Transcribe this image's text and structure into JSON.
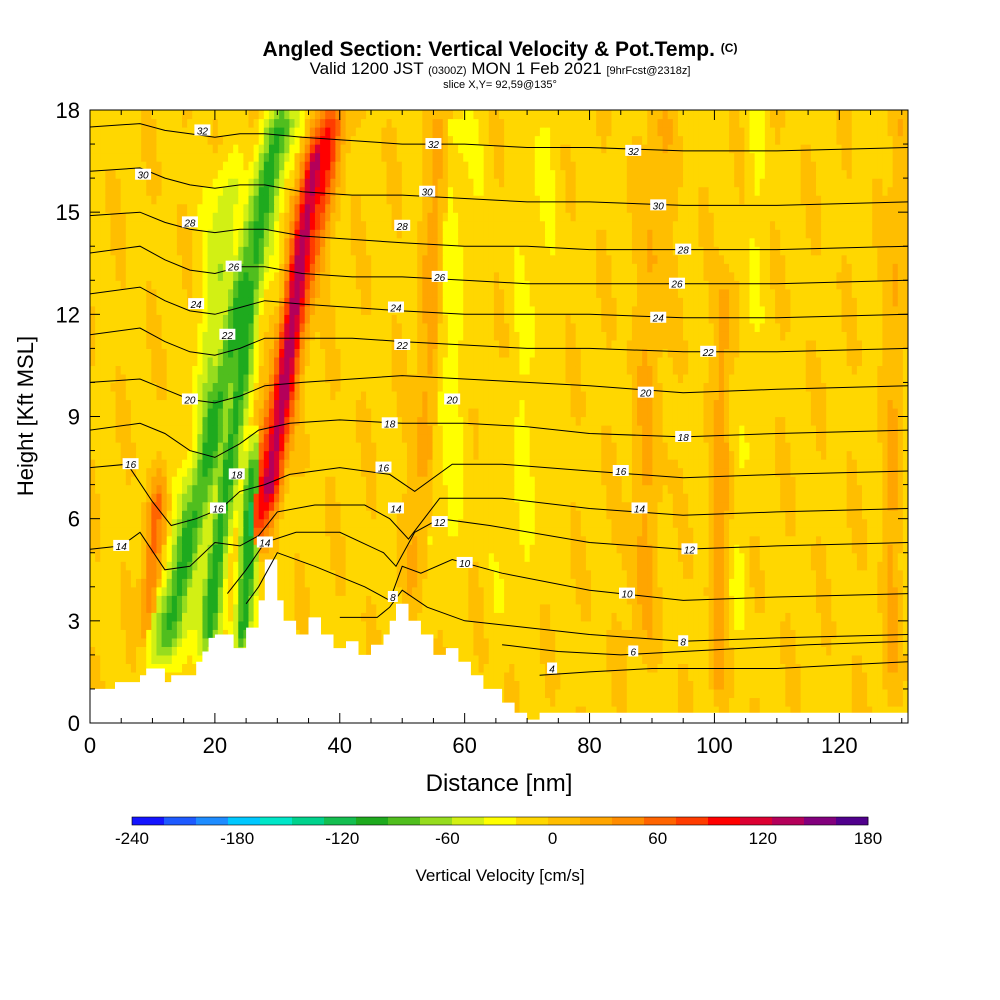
{
  "header": {
    "title": "Angled Section: Vertical Velocity & Pot.Temp.",
    "title_mark": "(C)",
    "valid_main": "Valid 1200 JST",
    "valid_utc": "(0300Z)",
    "valid_date": "MON 1 Feb 2021",
    "valid_fcst": "[9hrFcst@2318z]",
    "slice": "slice X,Y= 92,59@135°"
  },
  "chart_data": {
    "type": "heatmap",
    "xlabel": "Distance [nm]",
    "ylabel": "Height [Kft MSL]",
    "xlim": [
      0,
      131
    ],
    "ylim": [
      0,
      18
    ],
    "x_ticks": [
      0,
      20,
      40,
      60,
      80,
      100,
      120
    ],
    "y_ticks": [
      0,
      3,
      6,
      9,
      12,
      15,
      18
    ],
    "colorbar": {
      "label": "Vertical Velocity [cm/s]",
      "ticks": [
        -240,
        -180,
        -120,
        -60,
        0,
        60,
        120,
        180
      ],
      "min": -240,
      "max": 180,
      "step": 20,
      "colors": [
        "#1414ff",
        "#1e5aff",
        "#1e8cff",
        "#00c8ff",
        "#00e6c8",
        "#00d28c",
        "#14be50",
        "#1eaa1e",
        "#50be1e",
        "#96dc1e",
        "#d2f014",
        "#ffff00",
        "#ffd700",
        "#ffbe00",
        "#ffa500",
        "#ff8c00",
        "#ff6400",
        "#ff3c00",
        "#ff0000",
        "#dc0032",
        "#b4005a",
        "#82007d",
        "#50008c"
      ]
    },
    "background_value": 15,
    "plumes": [
      {
        "x": 12,
        "x_slope": 1.2,
        "width": 2.6,
        "z_range": [
          2.2,
          18
        ],
        "value": -85
      },
      {
        "x": 18.5,
        "x_slope": 0.7,
        "width": 1.8,
        "z_range": [
          2.2,
          17
        ],
        "value": -90
      },
      {
        "x": 24.3,
        "x_slope": 0.35,
        "width": 1.5,
        "z_range": [
          2.2,
          8
        ],
        "value": -95
      },
      {
        "x": 9,
        "x_slope": 0.5,
        "width": 1.4,
        "z_range": [
          3,
          7
        ],
        "value": 80
      },
      {
        "x": 16.5,
        "x_slope": 0.4,
        "width": 2.5,
        "z_range": [
          2.5,
          16
        ],
        "value": -40
      },
      {
        "x": 26.5,
        "x_slope": 1.0,
        "width": 2.3,
        "z_range": [
          5.5,
          18
        ],
        "value": 125
      },
      {
        "x": 28.5,
        "x_slope": 0.75,
        "width": 1.9,
        "z_range": [
          6.5,
          17
        ],
        "value": 175
      },
      {
        "x": 52,
        "x_slope": 0.3,
        "width": 1.8,
        "z_range": [
          4,
          18
        ],
        "value": 45
      },
      {
        "x": 57,
        "x_slope": 0.2,
        "width": 3,
        "z_range": [
          5,
          18
        ],
        "value": -5
      },
      {
        "x": 68,
        "x_slope": 0.3,
        "width": 3.5,
        "z_range": [
          3,
          18
        ],
        "value": 0
      },
      {
        "x": 88,
        "x_slope": 0.2,
        "width": 2.5,
        "z_range": [
          2,
          18
        ],
        "value": 40
      },
      {
        "x": 100.5,
        "x_slope": 0.1,
        "width": 1.4,
        "z_range": [
          1,
          13
        ],
        "value": 50
      },
      {
        "x": 104,
        "x_slope": 0.2,
        "width": 1.5,
        "z_range": [
          3,
          18
        ],
        "value": 0
      },
      {
        "x": 128,
        "x_slope": 0.1,
        "width": 1.5,
        "z_range": [
          1,
          18
        ],
        "value": 40
      }
    ],
    "terrain": {
      "x": [
        0,
        4,
        4,
        8,
        8,
        9,
        9,
        12,
        12,
        13,
        13,
        17,
        17,
        18,
        18,
        19,
        19,
        20,
        20,
        23,
        23,
        25,
        25,
        27,
        27,
        28,
        28,
        30,
        30,
        31,
        31,
        33,
        33,
        35,
        35,
        37,
        37,
        39,
        39,
        41,
        41,
        43,
        43,
        45,
        45,
        47,
        47,
        48,
        48,
        49,
        49,
        51,
        51,
        53,
        53,
        55,
        55,
        57,
        57,
        59,
        59,
        61,
        61,
        63,
        63,
        66,
        66,
        68,
        68,
        70,
        70,
        72,
        72,
        131
      ],
      "z": [
        1.0,
        1.0,
        1.2,
        1.2,
        1.4,
        1.4,
        1.6,
        1.6,
        1.2,
        1.2,
        1.4,
        1.4,
        1.8,
        1.8,
        2.1,
        2.1,
        2.5,
        2.5,
        2.6,
        2.6,
        2.2,
        2.2,
        2.8,
        2.8,
        3.6,
        3.6,
        4.8,
        4.8,
        3.6,
        3.6,
        3.0,
        3.0,
        2.6,
        2.6,
        3.1,
        3.1,
        2.6,
        2.6,
        2.2,
        2.2,
        2.4,
        2.4,
        2.0,
        2.0,
        2.3,
        2.3,
        2.6,
        2.6,
        3.0,
        3.0,
        3.5,
        3.5,
        3.0,
        3.0,
        2.6,
        2.6,
        2.0,
        2.0,
        2.2,
        2.2,
        1.8,
        1.8,
        1.4,
        1.4,
        1.0,
        1.0,
        0.6,
        0.6,
        0.3,
        0.3,
        0.1,
        0.1,
        0.3,
        0.3
      ]
    },
    "isentropes": {
      "levels": [
        4,
        6,
        8,
        10,
        12,
        14,
        16,
        18,
        20,
        22,
        24,
        26,
        28,
        30,
        32
      ],
      "lines": [
        {
          "theta": 4,
          "x": [
            72,
            80,
            90,
            100,
            110,
            120,
            131
          ],
          "z": [
            1.4,
            1.5,
            1.6,
            1.6,
            1.6,
            1.7,
            1.8
          ]
        },
        {
          "theta": 6,
          "x": [
            66,
            75,
            85,
            95,
            105,
            115,
            131
          ],
          "z": [
            2.3,
            2.1,
            2.0,
            2.1,
            2.2,
            2.3,
            2.4
          ]
        },
        {
          "theta": 8,
          "x": [
            40,
            46,
            48,
            50,
            54,
            60,
            70,
            80,
            95,
            110,
            131
          ],
          "z": [
            3.1,
            3.1,
            3.4,
            3.9,
            3.4,
            3.0,
            2.8,
            2.6,
            2.4,
            2.5,
            2.6
          ]
        },
        {
          "theta": 10,
          "x": [
            25,
            27,
            30,
            36,
            44,
            48,
            50,
            53,
            58,
            66,
            80,
            95,
            110,
            131
          ],
          "z": [
            3.5,
            4.0,
            5.0,
            4.6,
            4.0,
            3.6,
            4.6,
            4.4,
            4.8,
            4.4,
            3.9,
            3.6,
            3.7,
            3.8
          ]
        },
        {
          "theta": 12,
          "x": [
            22,
            25,
            28,
            33,
            40,
            47,
            49,
            52,
            56,
            64,
            80,
            95,
            110,
            131
          ],
          "z": [
            3.8,
            4.5,
            5.3,
            5.6,
            5.6,
            5.0,
            4.6,
            5.6,
            6.0,
            5.8,
            5.3,
            5.1,
            5.2,
            5.3
          ]
        },
        {
          "theta": 14,
          "x": [
            0,
            5,
            8,
            12,
            16,
            20,
            24,
            27,
            30,
            36,
            44,
            48,
            51,
            56,
            66,
            80,
            95,
            110,
            131
          ],
          "z": [
            5.1,
            5.2,
            5.6,
            4.5,
            4.6,
            5.3,
            5.2,
            5.5,
            6.2,
            6.4,
            6.4,
            6.0,
            5.4,
            6.6,
            6.6,
            6.3,
            6.1,
            6.2,
            6.3
          ]
        },
        {
          "theta": 16,
          "x": [
            0,
            6,
            10,
            13,
            17,
            21,
            24,
            28,
            32,
            40,
            48,
            52,
            58,
            66,
            80,
            95,
            110,
            131
          ],
          "z": [
            7.5,
            7.6,
            6.5,
            5.8,
            6.0,
            6.3,
            6.8,
            7.0,
            7.3,
            7.5,
            7.3,
            6.8,
            7.6,
            7.6,
            7.4,
            7.2,
            7.3,
            7.4
          ]
        },
        {
          "theta": 18,
          "x": [
            0,
            8,
            12,
            16,
            20,
            24,
            27,
            32,
            40,
            50,
            60,
            70,
            80,
            95,
            110,
            131
          ],
          "z": [
            8.6,
            8.8,
            8.5,
            8.0,
            7.8,
            8.2,
            8.6,
            8.8,
            8.9,
            8.8,
            8.8,
            8.7,
            8.5,
            8.4,
            8.5,
            8.6
          ]
        },
        {
          "theta": 20,
          "x": [
            0,
            8,
            12,
            16,
            20,
            24,
            28,
            34,
            42,
            50,
            60,
            70,
            80,
            95,
            110,
            131
          ],
          "z": [
            10.0,
            10.1,
            9.8,
            9.5,
            9.4,
            9.6,
            9.9,
            10.0,
            10.1,
            10.2,
            10.1,
            10.0,
            9.9,
            9.7,
            9.8,
            9.9
          ]
        },
        {
          "theta": 22,
          "x": [
            0,
            8,
            12,
            16,
            20,
            24,
            28,
            34,
            42,
            50,
            60,
            70,
            80,
            95,
            110,
            131
          ],
          "z": [
            11.4,
            11.6,
            11.2,
            10.9,
            10.8,
            11.0,
            11.3,
            11.3,
            11.3,
            11.2,
            11.1,
            11.0,
            11.0,
            10.9,
            10.9,
            11.0
          ]
        },
        {
          "theta": 24,
          "x": [
            0,
            8,
            12,
            16,
            20,
            24,
            28,
            34,
            42,
            50,
            60,
            70,
            80,
            95,
            110,
            131
          ],
          "z": [
            12.6,
            12.8,
            12.4,
            12.1,
            12.0,
            12.2,
            12.4,
            12.3,
            12.2,
            12.1,
            12.0,
            12.0,
            12.0,
            11.9,
            11.9,
            12.0
          ]
        },
        {
          "theta": 26,
          "x": [
            0,
            8,
            12,
            16,
            20,
            24,
            28,
            34,
            42,
            50,
            60,
            70,
            80,
            95,
            110,
            131
          ],
          "z": [
            13.8,
            14.0,
            13.6,
            13.3,
            13.2,
            13.4,
            13.4,
            13.2,
            13.1,
            13.1,
            13.0,
            12.9,
            12.9,
            12.9,
            12.9,
            13.0
          ]
        },
        {
          "theta": 28,
          "x": [
            0,
            8,
            12,
            16,
            20,
            24,
            28,
            34,
            42,
            50,
            60,
            70,
            80,
            95,
            110,
            131
          ],
          "z": [
            14.9,
            15.0,
            14.7,
            14.5,
            14.4,
            14.5,
            14.5,
            14.3,
            14.2,
            14.1,
            14.0,
            14.0,
            13.9,
            13.9,
            13.9,
            14.0
          ]
        },
        {
          "theta": 30,
          "x": [
            0,
            8,
            12,
            16,
            20,
            24,
            28,
            34,
            42,
            50,
            60,
            70,
            80,
            95,
            110,
            131
          ],
          "z": [
            16.2,
            16.3,
            16.0,
            15.8,
            15.7,
            15.8,
            15.8,
            15.6,
            15.5,
            15.5,
            15.4,
            15.3,
            15.3,
            15.2,
            15.2,
            15.3
          ]
        },
        {
          "theta": 32,
          "x": [
            0,
            8,
            12,
            16,
            20,
            24,
            28,
            34,
            42,
            50,
            60,
            70,
            80,
            95,
            110,
            131
          ],
          "z": [
            17.5,
            17.6,
            17.4,
            17.3,
            17.2,
            17.3,
            17.3,
            17.2,
            17.1,
            17.0,
            17.0,
            16.9,
            16.9,
            16.8,
            16.8,
            16.9
          ]
        }
      ],
      "labels": [
        {
          "text": "4",
          "x": 74,
          "z": 1.6
        },
        {
          "text": "6",
          "x": 87,
          "z": 2.1
        },
        {
          "text": "8",
          "x": 48.5,
          "z": 3.7
        },
        {
          "text": "8",
          "x": 95,
          "z": 2.4
        },
        {
          "text": "10",
          "x": 60,
          "z": 4.7
        },
        {
          "text": "10",
          "x": 86,
          "z": 3.8
        },
        {
          "text": "12",
          "x": 56,
          "z": 5.9
        },
        {
          "text": "12",
          "x": 96,
          "z": 5.1
        },
        {
          "text": "14",
          "x": 5,
          "z": 5.2
        },
        {
          "text": "14",
          "x": 28,
          "z": 5.3
        },
        {
          "text": "14",
          "x": 49,
          "z": 6.3
        },
        {
          "text": "14",
          "x": 88,
          "z": 6.3
        },
        {
          "text": "16",
          "x": 6.5,
          "z": 7.6
        },
        {
          "text": "16",
          "x": 20.5,
          "z": 6.3
        },
        {
          "text": "16",
          "x": 47,
          "z": 7.5
        },
        {
          "text": "16",
          "x": 85,
          "z": 7.4
        },
        {
          "text": "18",
          "x": 23.5,
          "z": 7.3
        },
        {
          "text": "18",
          "x": 48,
          "z": 8.8
        },
        {
          "text": "18",
          "x": 95,
          "z": 8.4
        },
        {
          "text": "20",
          "x": 16,
          "z": 9.5
        },
        {
          "text": "20",
          "x": 58,
          "z": 9.5
        },
        {
          "text": "20",
          "x": 89,
          "z": 9.7
        },
        {
          "text": "22",
          "x": 22,
          "z": 11.4
        },
        {
          "text": "22",
          "x": 50,
          "z": 11.1
        },
        {
          "text": "22",
          "x": 99,
          "z": 10.9
        },
        {
          "text": "24",
          "x": 17,
          "z": 12.3
        },
        {
          "text": "24",
          "x": 49,
          "z": 12.2
        },
        {
          "text": "24",
          "x": 91,
          "z": 11.9
        },
        {
          "text": "26",
          "x": 23,
          "z": 13.4
        },
        {
          "text": "26",
          "x": 56,
          "z": 13.1
        },
        {
          "text": "26",
          "x": 94,
          "z": 12.9
        },
        {
          "text": "28",
          "x": 16,
          "z": 14.7
        },
        {
          "text": "28",
          "x": 50,
          "z": 14.6
        },
        {
          "text": "28",
          "x": 95,
          "z": 13.9
        },
        {
          "text": "30",
          "x": 8.5,
          "z": 16.1
        },
        {
          "text": "30",
          "x": 54,
          "z": 15.6
        },
        {
          "text": "30",
          "x": 91,
          "z": 15.2
        },
        {
          "text": "32",
          "x": 18,
          "z": 17.4
        },
        {
          "text": "32",
          "x": 55,
          "z": 17.0
        },
        {
          "text": "32",
          "x": 87,
          "z": 16.8
        }
      ]
    }
  }
}
